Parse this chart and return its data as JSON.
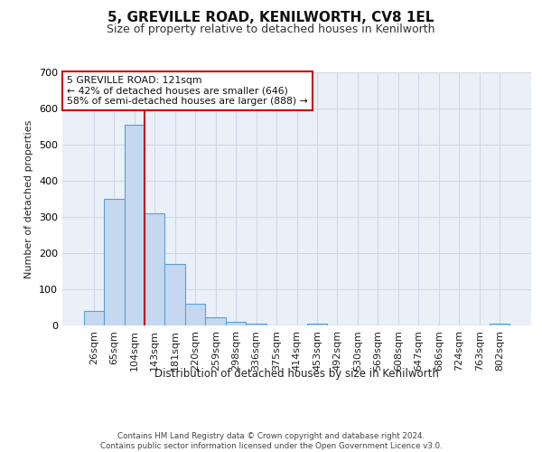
{
  "title": "5, GREVILLE ROAD, KENILWORTH, CV8 1EL",
  "subtitle": "Size of property relative to detached houses in Kenilworth",
  "xlabel": "Distribution of detached houses by size in Kenilworth",
  "ylabel": "Number of detached properties",
  "bins": [
    "26sqm",
    "65sqm",
    "104sqm",
    "143sqm",
    "181sqm",
    "220sqm",
    "259sqm",
    "298sqm",
    "336sqm",
    "375sqm",
    "414sqm",
    "453sqm",
    "492sqm",
    "530sqm",
    "569sqm",
    "608sqm",
    "647sqm",
    "686sqm",
    "724sqm",
    "763sqm",
    "802sqm"
  ],
  "values": [
    40,
    350,
    555,
    310,
    170,
    60,
    22,
    10,
    6,
    0,
    0,
    5,
    0,
    0,
    0,
    0,
    0,
    0,
    0,
    0,
    5
  ],
  "bar_color": "#c5d8f0",
  "bar_edge_color": "#5a9fd4",
  "grid_color": "#d0d8e8",
  "background_color": "#eaf0f8",
  "vline_color": "#cc0000",
  "annotation_text": "5 GREVILLE ROAD: 121sqm\n← 42% of detached houses are smaller (646)\n58% of semi-detached houses are larger (888) →",
  "annotation_box_color": "#ffffff",
  "annotation_box_edge": "#cc0000",
  "ylim": [
    0,
    700
  ],
  "yticks": [
    0,
    100,
    200,
    300,
    400,
    500,
    600,
    700
  ],
  "footer": "Contains HM Land Registry data © Crown copyright and database right 2024.\nContains public sector information licensed under the Open Government Licence v3.0."
}
